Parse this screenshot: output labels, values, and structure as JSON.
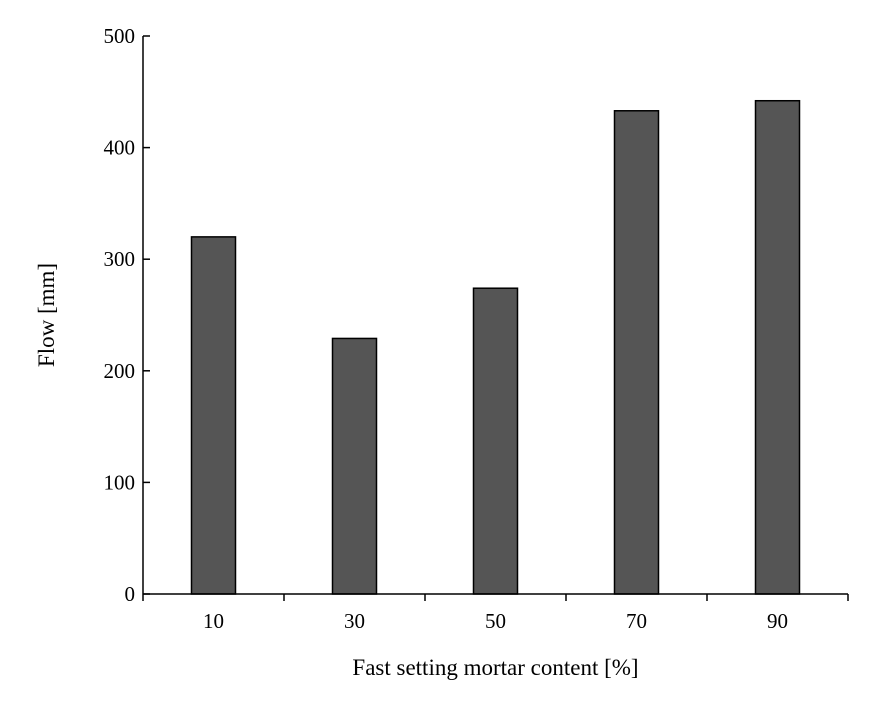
{
  "chart_data": {
    "type": "bar",
    "title": "",
    "xlabel": "Fast setting mortar content [%]",
    "ylabel": "Flow [mm]",
    "categories": [
      "10",
      "30",
      "50",
      "70",
      "90"
    ],
    "values": [
      320,
      229,
      274,
      433,
      442
    ],
    "ylim": [
      0,
      500
    ],
    "yticks": [
      "0",
      "100",
      "200",
      "300",
      "400",
      "500"
    ],
    "bar_color": "#555555",
    "bar_edge_color": "#000000",
    "grid": false,
    "legend": "none"
  }
}
